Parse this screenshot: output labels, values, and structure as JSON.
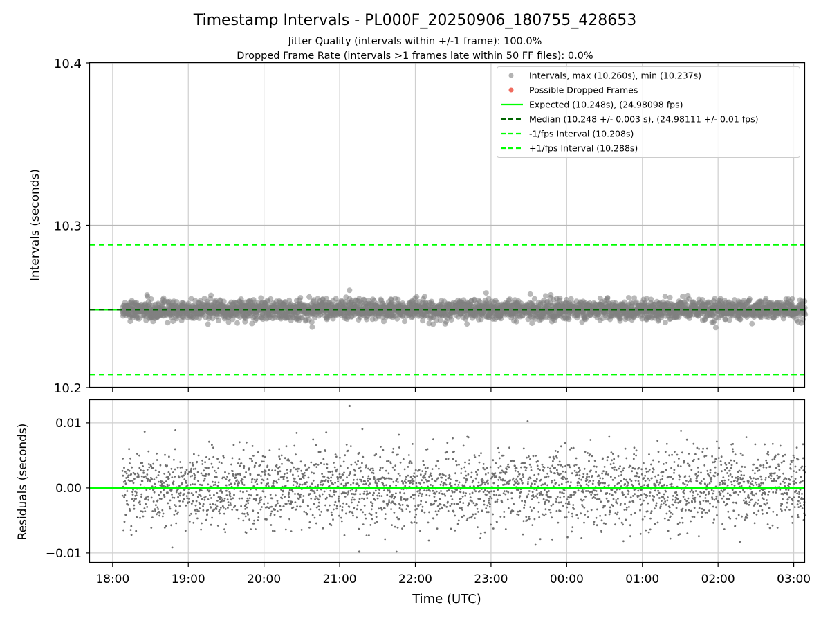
{
  "chart_data": {
    "type": "scatter",
    "title": "Timestamp Intervals - PL000F_20250906_180755_428653",
    "subtitle_lines": [
      "Jitter Quality (intervals within +/-1 frame): 100.0%",
      "Dropped Frame Rate (intervals >1 frames late within 50 FF files): 0.0%"
    ],
    "xlabel": "Time (UTC)",
    "x_ticks": [
      "18:00",
      "19:00",
      "20:00",
      "21:00",
      "22:00",
      "23:00",
      "00:00",
      "01:00",
      "02:00",
      "03:00"
    ],
    "x_range_hours": [
      -0.3,
      9.15
    ],
    "data_start_hour": 0.13,
    "data_end_hour": 9.15,
    "grid": true,
    "legend_placement": "upper right",
    "panels": [
      {
        "name": "intervals",
        "ylabel": "Intervals (seconds)",
        "ylim": [
          10.2,
          10.4
        ],
        "yticks": [
          "10.2",
          "10.3",
          "10.4"
        ],
        "series": [
          {
            "label": "Intervals, max (10.260s), min (10.237s)",
            "kind": "points",
            "color": "#808080",
            "center": 10.248,
            "spread": 0.003,
            "max": 10.26,
            "min": 10.237
          },
          {
            "label": "Possible Dropped Frames",
            "kind": "points",
            "color": "#f06b5f",
            "count": 0
          },
          {
            "label": "Expected (10.248s), (24.98098 fps)",
            "kind": "hline",
            "y": 10.248,
            "color": "#00ff00",
            "style": "solid"
          },
          {
            "label": "Median (10.248 +/- 0.003 s), (24.98111 +/- 0.01 fps)",
            "kind": "hline",
            "y": 10.248,
            "color": "#006400",
            "style": "dashed"
          },
          {
            "label": "-1/fps Interval (10.208s)",
            "kind": "hline",
            "y": 10.208,
            "color": "#00ff00",
            "style": "dashed"
          },
          {
            "label": "+1/fps Interval (10.288s)",
            "kind": "hline",
            "y": 10.288,
            "color": "#00ff00",
            "style": "dashed"
          }
        ]
      },
      {
        "name": "residuals",
        "ylabel": "Residuals (seconds)",
        "ylim": [
          -0.0115,
          0.0135
        ],
        "yticks": [
          -0.01,
          0.0,
          0.01
        ],
        "ytick_labels": [
          "−0.01",
          "0.00",
          "0.01"
        ],
        "series": [
          {
            "kind": "points",
            "color": "#6e6e6e",
            "center": 0.0,
            "spread": 0.003,
            "max": 0.0126,
            "min": -0.0098
          },
          {
            "kind": "hline",
            "y": 0.0,
            "color": "#00ff00",
            "style": "solid"
          }
        ]
      }
    ]
  }
}
